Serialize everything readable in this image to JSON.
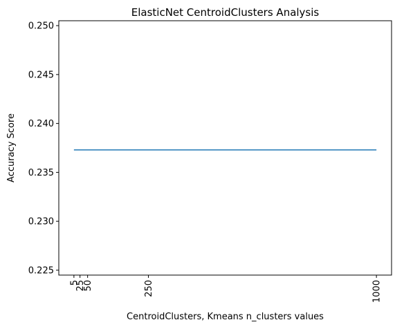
{
  "chart_data": {
    "type": "line",
    "title": "ElasticNet CentroidClusters Analysis",
    "xlabel": "CentroidClusters, Kmeans n_clusters values",
    "ylabel": "Accuracy Score",
    "x": [
      5,
      25,
      50,
      250,
      1000
    ],
    "x_tick_labels": [
      "5",
      "25",
      "50",
      "250",
      "1000"
    ],
    "series": [
      {
        "values": [
          0.2373,
          0.2373,
          0.2373,
          0.2373,
          0.2373
        ],
        "color": "#1f77b4"
      }
    ],
    "xlim": [
      -44.75,
      1049.75
    ],
    "ylim": [
      0.2245,
      0.2505
    ],
    "y_ticks": [
      0.225,
      0.23,
      0.235,
      0.24,
      0.245,
      0.25
    ],
    "y_tick_labels": [
      "0.225",
      "0.230",
      "0.235",
      "0.240",
      "0.245",
      "0.250"
    ],
    "x_tick_rotation": "vertical",
    "grid": false,
    "legend": "none"
  }
}
